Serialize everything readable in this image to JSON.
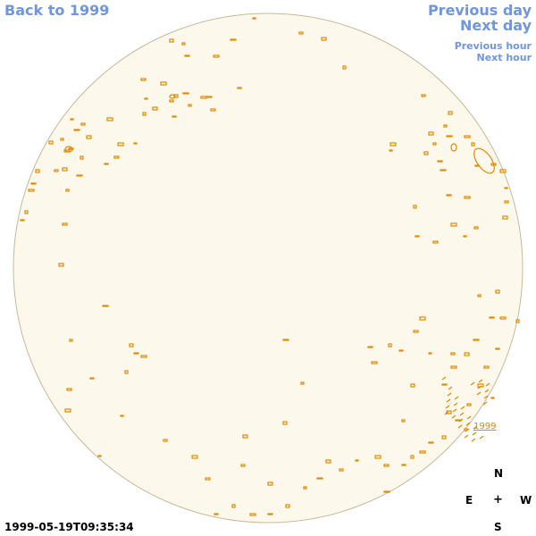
{
  "nav": {
    "back_label": "Back to 1999",
    "prev_day_label": "Previous day",
    "next_day_label": "Next day",
    "prev_hour_label": "Previous hour",
    "next_hour_label": "Next hour"
  },
  "compass": {
    "n": "N",
    "s": "S",
    "e": "E",
    "w": "W",
    "center": "+"
  },
  "timestamp": "1999-05-19T09:35:34",
  "marker_label": "1999",
  "colors": {
    "disk_fill": "#fdf8ec",
    "disk_stroke": "#c8b89a",
    "contour": "#e08a00",
    "link": "#6f96e0"
  }
}
